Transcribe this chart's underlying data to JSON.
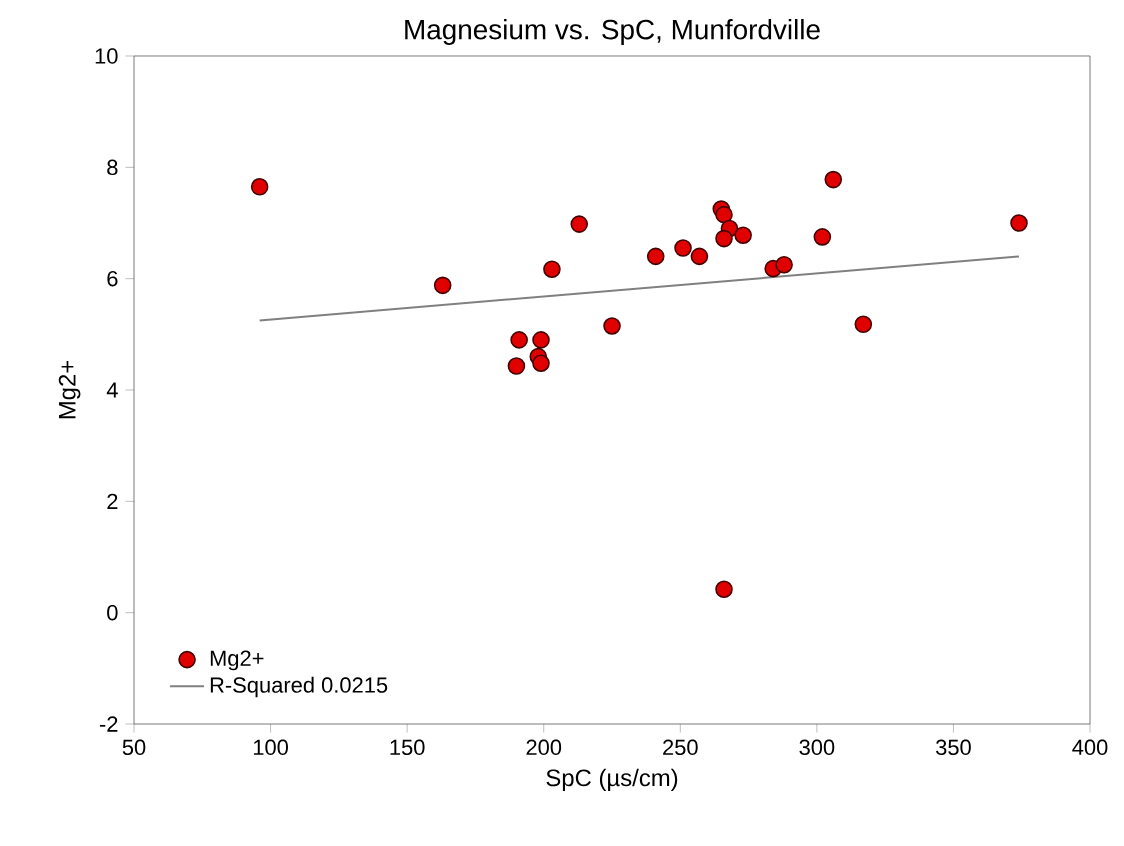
{
  "chart_data": {
    "type": "scatter",
    "title": "Magnesium vs. SpC, Munfordville",
    "xlabel": "SpC (µs/cm)",
    "ylabel": "Mg2+",
    "xlim": [
      50,
      400
    ],
    "xticks": [
      50,
      100,
      150,
      200,
      250,
      300,
      350,
      400
    ],
    "ylim": [
      -2,
      10
    ],
    "yticks": [
      -2,
      0,
      2,
      4,
      6,
      8,
      10
    ],
    "grid": false,
    "legend": "bottom left",
    "series": [
      {
        "name": "Mg2+",
        "marker": "circle",
        "color": "#e00000",
        "x": [
          96,
          163,
          190,
          191,
          198,
          199,
          199,
          203,
          213,
          225,
          241,
          251,
          257,
          265,
          266,
          268,
          266,
          273,
          284,
          288,
          302,
          306,
          317,
          374,
          266
        ],
        "values": [
          7.65,
          5.88,
          4.43,
          4.9,
          4.6,
          4.9,
          4.48,
          6.17,
          6.98,
          5.15,
          6.4,
          6.55,
          6.4,
          7.25,
          7.15,
          6.9,
          6.72,
          6.78,
          6.18,
          6.25,
          6.75,
          7.78,
          5.18,
          7.0,
          0.42
        ]
      },
      {
        "name": "R-Squared 0.0215",
        "type": "line",
        "marker": "none",
        "color": "#808080",
        "x": [
          96,
          374
        ],
        "values": [
          5.25,
          6.4
        ]
      }
    ]
  }
}
